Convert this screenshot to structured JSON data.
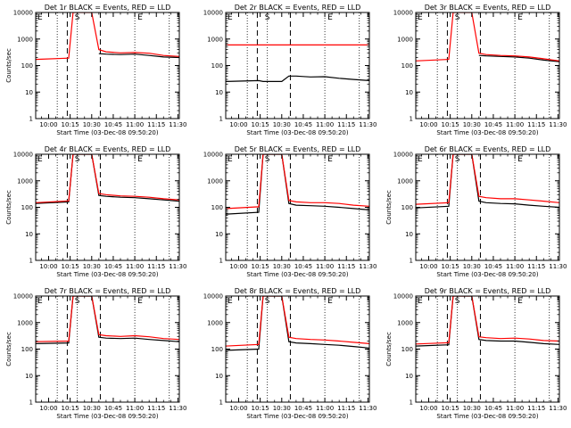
{
  "figure": {
    "shared": {
      "title_suffix": "BLACK = Events, RED = LLD",
      "xlabel": "Start Time (03-Dec-08 09:50:20)",
      "ylabel": "Counts/sec",
      "x_tick_labels": [
        "10:00",
        "10:15",
        "10:30",
        "10:45",
        "11:00",
        "11:15",
        "11:30"
      ],
      "y_tick_labels": [
        "1",
        "10",
        "100",
        "1000",
        "10000"
      ],
      "markers": [
        "E",
        "S",
        "E"
      ],
      "colors": {
        "events": "#000000",
        "lld": "#ff0000",
        "axes": "#000000"
      }
    }
  },
  "chart_data": [
    {
      "type": "line",
      "title": "Det 1r BLACK = Events, RED = LLD",
      "xlabel": "Start Time (03-Dec-08 09:50:20)",
      "ylabel": "Counts/sec",
      "xlim": [
        "09:51",
        "11:31"
      ],
      "ylim": [
        1,
        10000
      ],
      "y_scale": "log",
      "x": [
        "09:51",
        "10:14",
        "10:17",
        "10:30",
        "10:35",
        "10:40",
        "10:50",
        "11:00",
        "11:10",
        "11:20",
        "11:31"
      ],
      "series": [
        {
          "name": "Events",
          "color": "#000000",
          "values": [
            null,
            null,
            null,
            null,
            280,
            270,
            260,
            270,
            240,
            210,
            200
          ]
        },
        {
          "name": "LLD",
          "color": "#ff0000",
          "values": [
            170,
            190,
            10000,
            10000,
            400,
            330,
            300,
            310,
            290,
            240,
            220
          ]
        }
      ],
      "vlines_dotted": [
        "10:06",
        "10:20",
        "11:00",
        "11:24"
      ],
      "vlines_dashed": [
        "10:13",
        "10:36"
      ],
      "markers": [
        "E",
        "S",
        "E"
      ]
    },
    {
      "type": "line",
      "title": "Det 2r BLACK = Events, RED = LLD",
      "xlabel": "Start Time (03-Dec-08 09:50:20)",
      "ylabel": "",
      "xlim": [
        "09:51",
        "11:31"
      ],
      "ylim": [
        1,
        10000
      ],
      "y_scale": "log",
      "x": [
        "09:51",
        "10:14",
        "10:17",
        "10:30",
        "10:35",
        "10:40",
        "10:50",
        "11:00",
        "11:10",
        "11:20",
        "11:31"
      ],
      "series": [
        {
          "name": "Events",
          "color": "#000000",
          "values": [
            25,
            27,
            25,
            25,
            40,
            40,
            37,
            38,
            33,
            30,
            27
          ]
        },
        {
          "name": "LLD",
          "color": "#ff0000",
          "values": [
            600,
            600,
            600,
            600,
            600,
            600,
            600,
            600,
            600,
            600,
            600
          ]
        }
      ],
      "vlines_dotted": [
        "10:06",
        "10:20",
        "11:00",
        "11:24"
      ],
      "vlines_dashed": [
        "10:13",
        "10:36"
      ],
      "markers": [
        "E",
        "S",
        "E"
      ]
    },
    {
      "type": "line",
      "title": "Det 3r BLACK = Events, RED = LLD",
      "xlabel": "Start Time (03-Dec-08 09:50:20)",
      "ylabel": "",
      "xlim": [
        "09:51",
        "11:31"
      ],
      "ylim": [
        1,
        10000
      ],
      "y_scale": "log",
      "x": [
        "09:51",
        "10:14",
        "10:17",
        "10:30",
        "10:35",
        "10:40",
        "10:50",
        "11:00",
        "11:10",
        "11:20",
        "11:31"
      ],
      "series": [
        {
          "name": "Events",
          "color": "#000000",
          "values": [
            null,
            null,
            null,
            null,
            240,
            230,
            220,
            210,
            190,
            160,
            140
          ]
        },
        {
          "name": "LLD",
          "color": "#ff0000",
          "values": [
            150,
            170,
            10000,
            10000,
            290,
            260,
            240,
            230,
            210,
            180,
            150
          ]
        }
      ],
      "vlines_dotted": [
        "10:06",
        "10:20",
        "11:00",
        "11:24"
      ],
      "vlines_dashed": [
        "10:13",
        "10:36"
      ],
      "markers": [
        "E",
        "S",
        "E"
      ]
    },
    {
      "type": "line",
      "title": "Det 4r BLACK = Events, RED = LLD",
      "xlabel": "Start Time (03-Dec-08 09:50:20)",
      "ylabel": "Counts/sec",
      "xlim": [
        "09:51",
        "11:31"
      ],
      "ylim": [
        1,
        10000
      ],
      "y_scale": "log",
      "x": [
        "09:51",
        "10:14",
        "10:17",
        "10:30",
        "10:35",
        "10:40",
        "10:50",
        "11:00",
        "11:10",
        "11:20",
        "11:31"
      ],
      "series": [
        {
          "name": "Events",
          "color": "#000000",
          "values": [
            140,
            160,
            10000,
            10000,
            280,
            260,
            240,
            230,
            210,
            190,
            170
          ]
        },
        {
          "name": "LLD",
          "color": "#ff0000",
          "values": [
            150,
            175,
            10000,
            10000,
            330,
            300,
            270,
            260,
            240,
            210,
            190
          ]
        }
      ],
      "vlines_dotted": [
        "10:06",
        "10:20",
        "11:00",
        "11:24"
      ],
      "vlines_dashed": [
        "10:13",
        "10:36"
      ],
      "markers": [
        "E",
        "S",
        "E"
      ]
    },
    {
      "type": "line",
      "title": "Det 5r BLACK = Events, RED = LLD",
      "xlabel": "Start Time (03-Dec-08 09:50:20)",
      "ylabel": "",
      "xlim": [
        "09:51",
        "11:31"
      ],
      "ylim": [
        1,
        10000
      ],
      "y_scale": "log",
      "x": [
        "09:51",
        "10:14",
        "10:17",
        "10:30",
        "10:35",
        "10:40",
        "10:50",
        "11:00",
        "11:10",
        "11:20",
        "11:31"
      ],
      "series": [
        {
          "name": "Events",
          "color": "#000000",
          "values": [
            55,
            65,
            10000,
            10000,
            140,
            120,
            115,
            110,
            100,
            90,
            80
          ]
        },
        {
          "name": "LLD",
          "color": "#ff0000",
          "values": [
            90,
            105,
            10000,
            10000,
            180,
            160,
            150,
            150,
            140,
            120,
            110
          ]
        }
      ],
      "vlines_dotted": [
        "10:06",
        "10:20",
        "11:00",
        "11:24"
      ],
      "vlines_dashed": [
        "10:13",
        "10:36"
      ],
      "markers": [
        "E",
        "S",
        "E"
      ]
    },
    {
      "type": "line",
      "title": "Det 6r BLACK = Events, RED = LLD",
      "xlabel": "Start Time (03-Dec-08 09:50:20)",
      "ylabel": "Counts/sec",
      "xlim": [
        "09:51",
        "11:31"
      ],
      "ylim": [
        1,
        10000
      ],
      "y_scale": "log",
      "x": [
        "09:51",
        "10:14",
        "10:17",
        "10:30",
        "10:35",
        "10:40",
        "10:50",
        "11:00",
        "11:10",
        "11:20",
        "11:31"
      ],
      "series": [
        {
          "name": "Events",
          "color": "#000000",
          "values": [
            95,
            110,
            10000,
            10000,
            170,
            150,
            140,
            135,
            120,
            110,
            100
          ]
        },
        {
          "name": "LLD",
          "color": "#ff0000",
          "values": [
            130,
            150,
            10000,
            10000,
            260,
            230,
            210,
            210,
            190,
            170,
            150
          ]
        }
      ],
      "vlines_dotted": [
        "10:06",
        "10:20",
        "11:00",
        "11:24"
      ],
      "vlines_dashed": [
        "10:13",
        "10:36"
      ],
      "markers": [
        "E",
        "S",
        "E"
      ]
    },
    {
      "type": "line",
      "title": "Det 7r BLACK = Events, RED = LLD",
      "xlabel": "Start Time (03-Dec-08 09:50:20)",
      "ylabel": "Counts/sec",
      "xlim": [
        "09:51",
        "11:31"
      ],
      "ylim": [
        1,
        10000
      ],
      "y_scale": "log",
      "x": [
        "09:51",
        "10:14",
        "10:17",
        "10:30",
        "10:35",
        "10:40",
        "10:50",
        "11:00",
        "11:10",
        "11:20",
        "11:31"
      ],
      "series": [
        {
          "name": "Events",
          "color": "#000000",
          "values": [
            160,
            170,
            10000,
            10000,
            280,
            260,
            250,
            260,
            230,
            210,
            190
          ]
        },
        {
          "name": "LLD",
          "color": "#ff0000",
          "values": [
            190,
            200,
            10000,
            10000,
            350,
            320,
            300,
            320,
            290,
            250,
            230
          ]
        }
      ],
      "vlines_dotted": [
        "10:06",
        "10:20",
        "11:00",
        "11:24"
      ],
      "vlines_dashed": [
        "10:13",
        "10:36"
      ],
      "markers": [
        "E",
        "S",
        "E"
      ]
    },
    {
      "type": "line",
      "title": "Det 8r BLACK = Events, RED = LLD",
      "xlabel": "Start Time (03-Dec-08 09:50:20)",
      "ylabel": "",
      "xlim": [
        "09:51",
        "11:31"
      ],
      "ylim": [
        1,
        10000
      ],
      "y_scale": "log",
      "x": [
        "09:51",
        "10:14",
        "10:17",
        "10:30",
        "10:35",
        "10:40",
        "10:50",
        "11:00",
        "11:10",
        "11:20",
        "11:31"
      ],
      "series": [
        {
          "name": "Events",
          "color": "#000000",
          "values": [
            90,
            100,
            10000,
            10000,
            190,
            170,
            160,
            150,
            140,
            125,
            110
          ]
        },
        {
          "name": "LLD",
          "color": "#ff0000",
          "values": [
            130,
            150,
            10000,
            10000,
            280,
            250,
            230,
            220,
            200,
            180,
            160
          ]
        }
      ],
      "vlines_dotted": [
        "10:06",
        "10:20",
        "11:00",
        "11:24"
      ],
      "vlines_dashed": [
        "10:13",
        "10:36"
      ],
      "markers": [
        "E",
        "S",
        "E"
      ]
    },
    {
      "type": "line",
      "title": "Det 9r BLACK = Events, RED = LLD",
      "xlabel": "Start Time (03-Dec-08 09:50:20)",
      "ylabel": "Counts/sec",
      "xlim": [
        "09:51",
        "11:31"
      ],
      "ylim": [
        1,
        10000
      ],
      "y_scale": "log",
      "x": [
        "09:51",
        "10:14",
        "10:17",
        "10:30",
        "10:35",
        "10:40",
        "10:50",
        "11:00",
        "11:10",
        "11:20",
        "11:31"
      ],
      "series": [
        {
          "name": "Events",
          "color": "#000000",
          "values": [
            130,
            145,
            10000,
            10000,
            230,
            210,
            200,
            200,
            180,
            160,
            150
          ]
        },
        {
          "name": "LLD",
          "color": "#ff0000",
          "values": [
            155,
            175,
            10000,
            10000,
            290,
            270,
            250,
            260,
            240,
            210,
            200
          ]
        }
      ],
      "vlines_dotted": [
        "10:06",
        "10:20",
        "11:00",
        "11:24"
      ],
      "vlines_dashed": [
        "10:13",
        "10:36"
      ],
      "markers": [
        "E",
        "S",
        "E"
      ]
    }
  ]
}
